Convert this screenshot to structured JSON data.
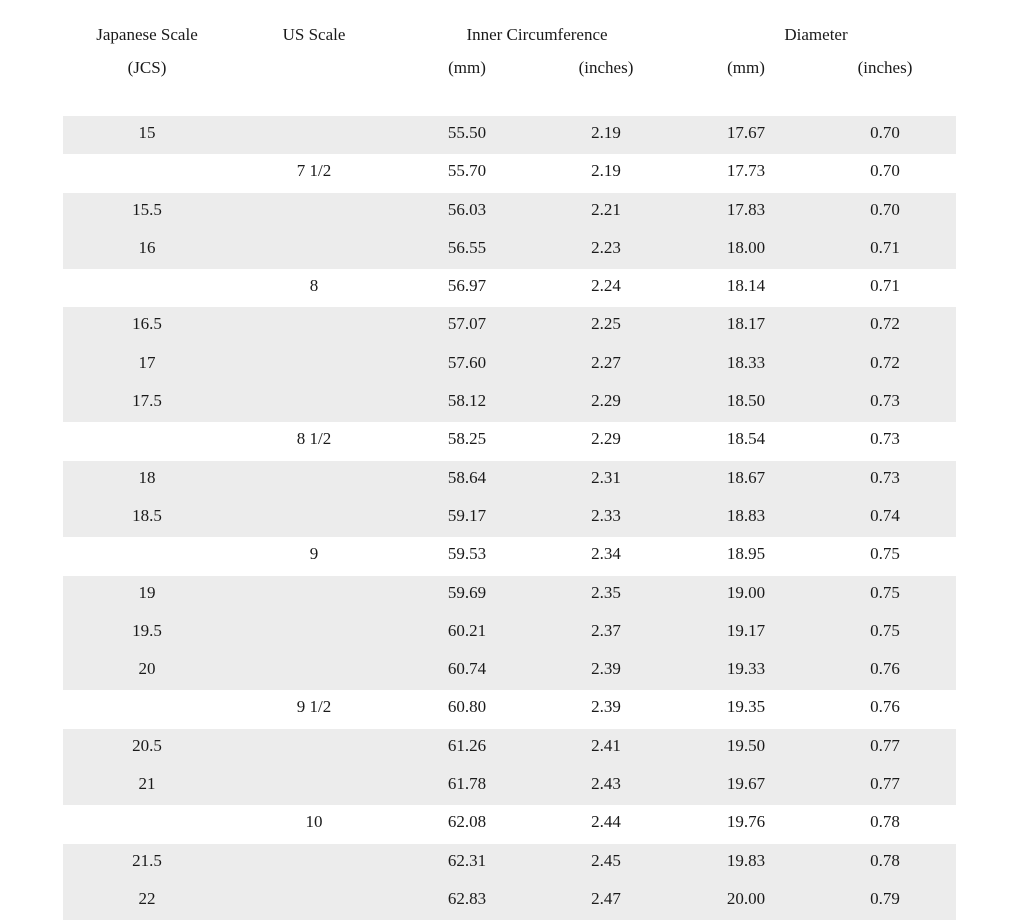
{
  "header": {
    "jcs_line1": "Japanese Scale",
    "jcs_line2": "(JCS)",
    "us": "US Scale",
    "circumference": "Inner Circumference",
    "circ_mm": "(mm)",
    "circ_in": "(inches)",
    "diameter": "Diameter",
    "diam_mm": "(mm)",
    "diam_in": "(inches)"
  },
  "rows": [
    {
      "jcs": "15",
      "us": "",
      "cmm": "55.50",
      "cin": "2.19",
      "dmm": "17.67",
      "din": "0.70"
    },
    {
      "jcs": "",
      "us": "7 1/2",
      "cmm": "55.70",
      "cin": "2.19",
      "dmm": "17.73",
      "din": "0.70"
    },
    {
      "jcs": "15.5",
      "us": "",
      "cmm": "56.03",
      "cin": "2.21",
      "dmm": "17.83",
      "din": "0.70"
    },
    {
      "jcs": "16",
      "us": "",
      "cmm": "56.55",
      "cin": "2.23",
      "dmm": "18.00",
      "din": "0.71"
    },
    {
      "jcs": "",
      "us": "8",
      "cmm": "56.97",
      "cin": "2.24",
      "dmm": "18.14",
      "din": "0.71"
    },
    {
      "jcs": "16.5",
      "us": "",
      "cmm": "57.07",
      "cin": "2.25",
      "dmm": "18.17",
      "din": "0.72"
    },
    {
      "jcs": "17",
      "us": "",
      "cmm": "57.60",
      "cin": "2.27",
      "dmm": "18.33",
      "din": "0.72"
    },
    {
      "jcs": "17.5",
      "us": "",
      "cmm": "58.12",
      "cin": "2.29",
      "dmm": "18.50",
      "din": "0.73"
    },
    {
      "jcs": "",
      "us": "8 1/2",
      "cmm": "58.25",
      "cin": "2.29",
      "dmm": "18.54",
      "din": "0.73"
    },
    {
      "jcs": "18",
      "us": "",
      "cmm": "58.64",
      "cin": "2.31",
      "dmm": "18.67",
      "din": "0.73"
    },
    {
      "jcs": "18.5",
      "us": "",
      "cmm": "59.17",
      "cin": "2.33",
      "dmm": "18.83",
      "din": "0.74"
    },
    {
      "jcs": "",
      "us": "9",
      "cmm": "59.53",
      "cin": "2.34",
      "dmm": "18.95",
      "din": "0.75"
    },
    {
      "jcs": "19",
      "us": "",
      "cmm": "59.69",
      "cin": "2.35",
      "dmm": "19.00",
      "din": "0.75"
    },
    {
      "jcs": "19.5",
      "us": "",
      "cmm": "60.21",
      "cin": "2.37",
      "dmm": "19.17",
      "din": "0.75"
    },
    {
      "jcs": "20",
      "us": "",
      "cmm": "60.74",
      "cin": "2.39",
      "dmm": "19.33",
      "din": "0.76"
    },
    {
      "jcs": "",
      "us": "9 1/2",
      "cmm": "60.80",
      "cin": "2.39",
      "dmm": "19.35",
      "din": "0.76"
    },
    {
      "jcs": "20.5",
      "us": "",
      "cmm": "61.26",
      "cin": "2.41",
      "dmm": "19.50",
      "din": "0.77"
    },
    {
      "jcs": "21",
      "us": "",
      "cmm": "61.78",
      "cin": "2.43",
      "dmm": "19.67",
      "din": "0.77"
    },
    {
      "jcs": "",
      "us": "10",
      "cmm": "62.08",
      "cin": "2.44",
      "dmm": "19.76",
      "din": "0.78"
    },
    {
      "jcs": "21.5",
      "us": "",
      "cmm": "62.31",
      "cin": "2.45",
      "dmm": "19.83",
      "din": "0.78"
    },
    {
      "jcs": "22",
      "us": "",
      "cmm": "62.83",
      "cin": "2.47",
      "dmm": "20.00",
      "din": "0.79"
    }
  ]
}
